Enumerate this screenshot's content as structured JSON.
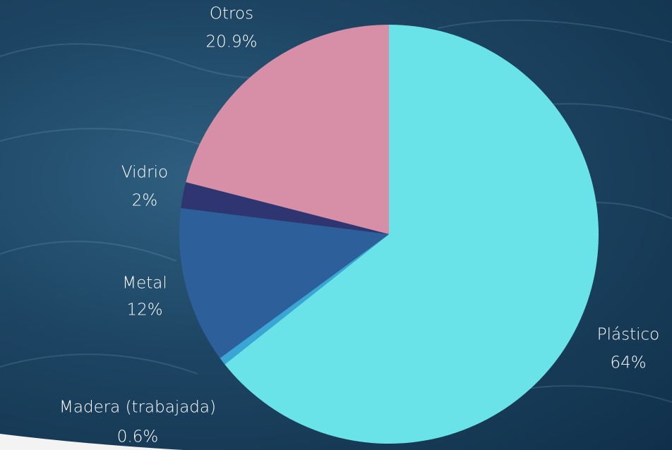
{
  "chart_data": {
    "type": "pie",
    "categories": [
      "Plástico",
      "Madera (trabajada)",
      "Metal",
      "Vidrio",
      "Otros"
    ],
    "values": [
      64,
      0.6,
      12,
      2,
      20.9
    ],
    "value_labels": [
      "64%",
      "0.6%",
      "12%",
      "2%",
      "20.9%"
    ],
    "colors": [
      "#6ae3e8",
      "#3aa6d6",
      "#2d5f9a",
      "#2e3570",
      "#d68fa7"
    ]
  }
}
